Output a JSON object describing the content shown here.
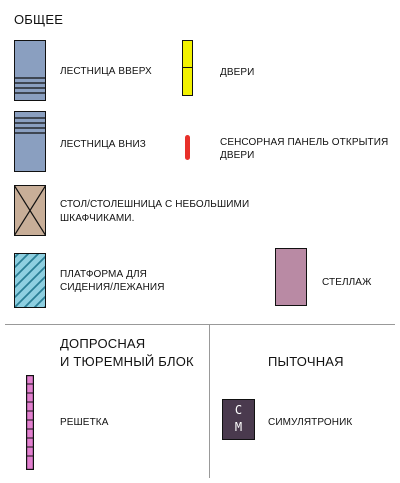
{
  "general": {
    "title": "ОБЩЕЕ",
    "stairs_up": "ЛЕСТНИЦА ВВЕРХ",
    "stairs_down": "ЛЕСТНИЦА ВНИЗ",
    "doors": "ДВЕРИ",
    "door_panel_line1": "СЕНСОРНАЯ ПАНЕЛЬ ОТКРЫТИЯ",
    "door_panel_line2": "ДВЕРИ",
    "table_line1": "СТОЛ/СТОЛЕШНИЦА С НЕБОЛЬШИМИ",
    "table_line2": "ШКАФЧИКАМИ.",
    "platform_line1": "ПЛАТФОРМА ДЛЯ",
    "platform_line2": "СИДЕНИЯ/ЛЕЖАНИЯ",
    "rack": "СТЕЛЛАЖ"
  },
  "interrogation": {
    "title_line1": "ДОПРОСНАЯ",
    "title_line2": "И ТЮРЕМНЫЙ БЛОК",
    "grate": "РЕШЕТКА"
  },
  "torture": {
    "title": "ПЫТОЧНАЯ",
    "simulatronic": "СИМУЛЯТРОНИК",
    "sim_letter_top": "С",
    "sim_letter_bottom": "М"
  },
  "colors": {
    "stairs": "#8a9fc0",
    "doors": "#f2f200",
    "door_panel": "#e8302a",
    "table": "#c8ae98",
    "platform": "#8ecfe0",
    "platform_hatch": "#2a7f96",
    "rack": "#b98aa4",
    "grate": "#e27fcf",
    "simulatronic": "#4a3a4e"
  }
}
